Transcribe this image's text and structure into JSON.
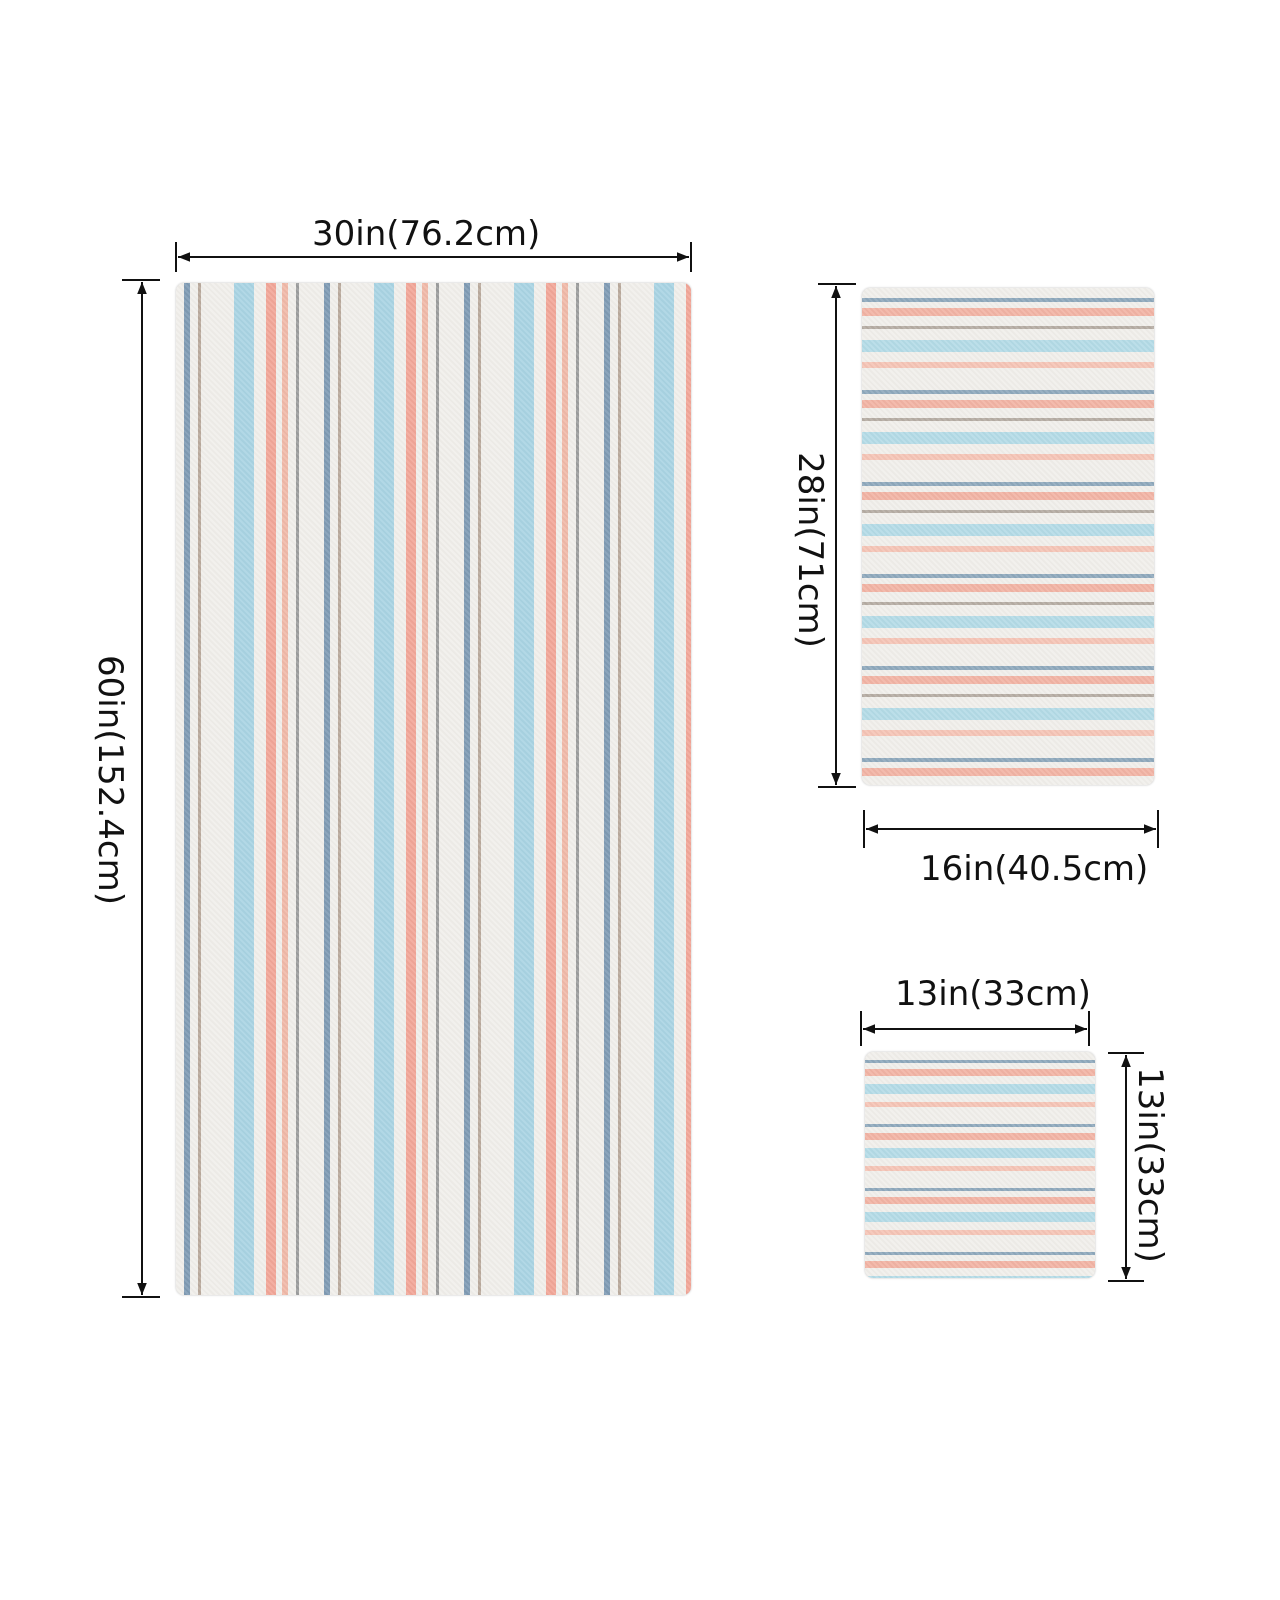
{
  "bath_towel": {
    "width_label": "30in(76.2cm)",
    "height_label": "60in(152.4cm)"
  },
  "hand_towel": {
    "height_label": "28in(71cm)",
    "width_label": "16in(40.5cm)"
  },
  "washcloth": {
    "width_label": "13in(33cm)",
    "height_label": "13in(33cm)"
  },
  "colors": {
    "background": "#ffffff",
    "towel_base": "#f1efeb",
    "stripe_blue": "#a9d4e3",
    "stripe_pink": "#f2a698",
    "stripe_slate": "#7f9bb4",
    "text": "#111111"
  }
}
